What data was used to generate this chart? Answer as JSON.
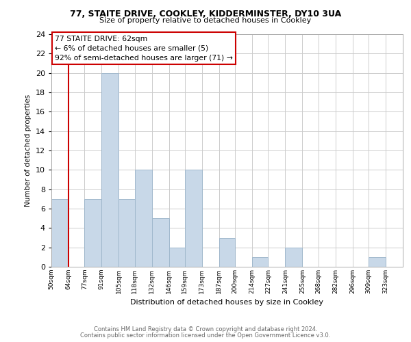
{
  "title1": "77, STAITE DRIVE, COOKLEY, KIDDERMINSTER, DY10 3UA",
  "title2": "Size of property relative to detached houses in Cookley",
  "xlabel": "Distribution of detached houses by size in Cookley",
  "ylabel": "Number of detached properties",
  "bin_labels": [
    "50sqm",
    "64sqm",
    "77sqm",
    "91sqm",
    "105sqm",
    "118sqm",
    "132sqm",
    "146sqm",
    "159sqm",
    "173sqm",
    "187sqm",
    "200sqm",
    "214sqm",
    "227sqm",
    "241sqm",
    "255sqm",
    "268sqm",
    "282sqm",
    "296sqm",
    "309sqm",
    "323sqm"
  ],
  "bin_edges": [
    50,
    64,
    77,
    91,
    105,
    118,
    132,
    146,
    159,
    173,
    187,
    200,
    214,
    227,
    241,
    255,
    268,
    282,
    296,
    309,
    323,
    337
  ],
  "counts": [
    7,
    0,
    7,
    20,
    7,
    10,
    5,
    2,
    10,
    0,
    3,
    0,
    1,
    0,
    2,
    0,
    0,
    0,
    0,
    1,
    0
  ],
  "bar_color": "#c8d8e8",
  "bar_edgecolor": "#a0b8cc",
  "highlight_color": "#cc0000",
  "annotation_title": "77 STAITE DRIVE: 62sqm",
  "annotation_line1": "← 6% of detached houses are smaller (5)",
  "annotation_line2": "92% of semi-detached houses are larger (71) →",
  "annotation_box_color": "#ffffff",
  "annotation_box_edgecolor": "#cc0000",
  "footer1": "Contains HM Land Registry data © Crown copyright and database right 2024.",
  "footer2": "Contains public sector information licensed under the Open Government Licence v3.0.",
  "ylim": [
    0,
    24
  ],
  "yticks": [
    0,
    2,
    4,
    6,
    8,
    10,
    12,
    14,
    16,
    18,
    20,
    22,
    24
  ]
}
